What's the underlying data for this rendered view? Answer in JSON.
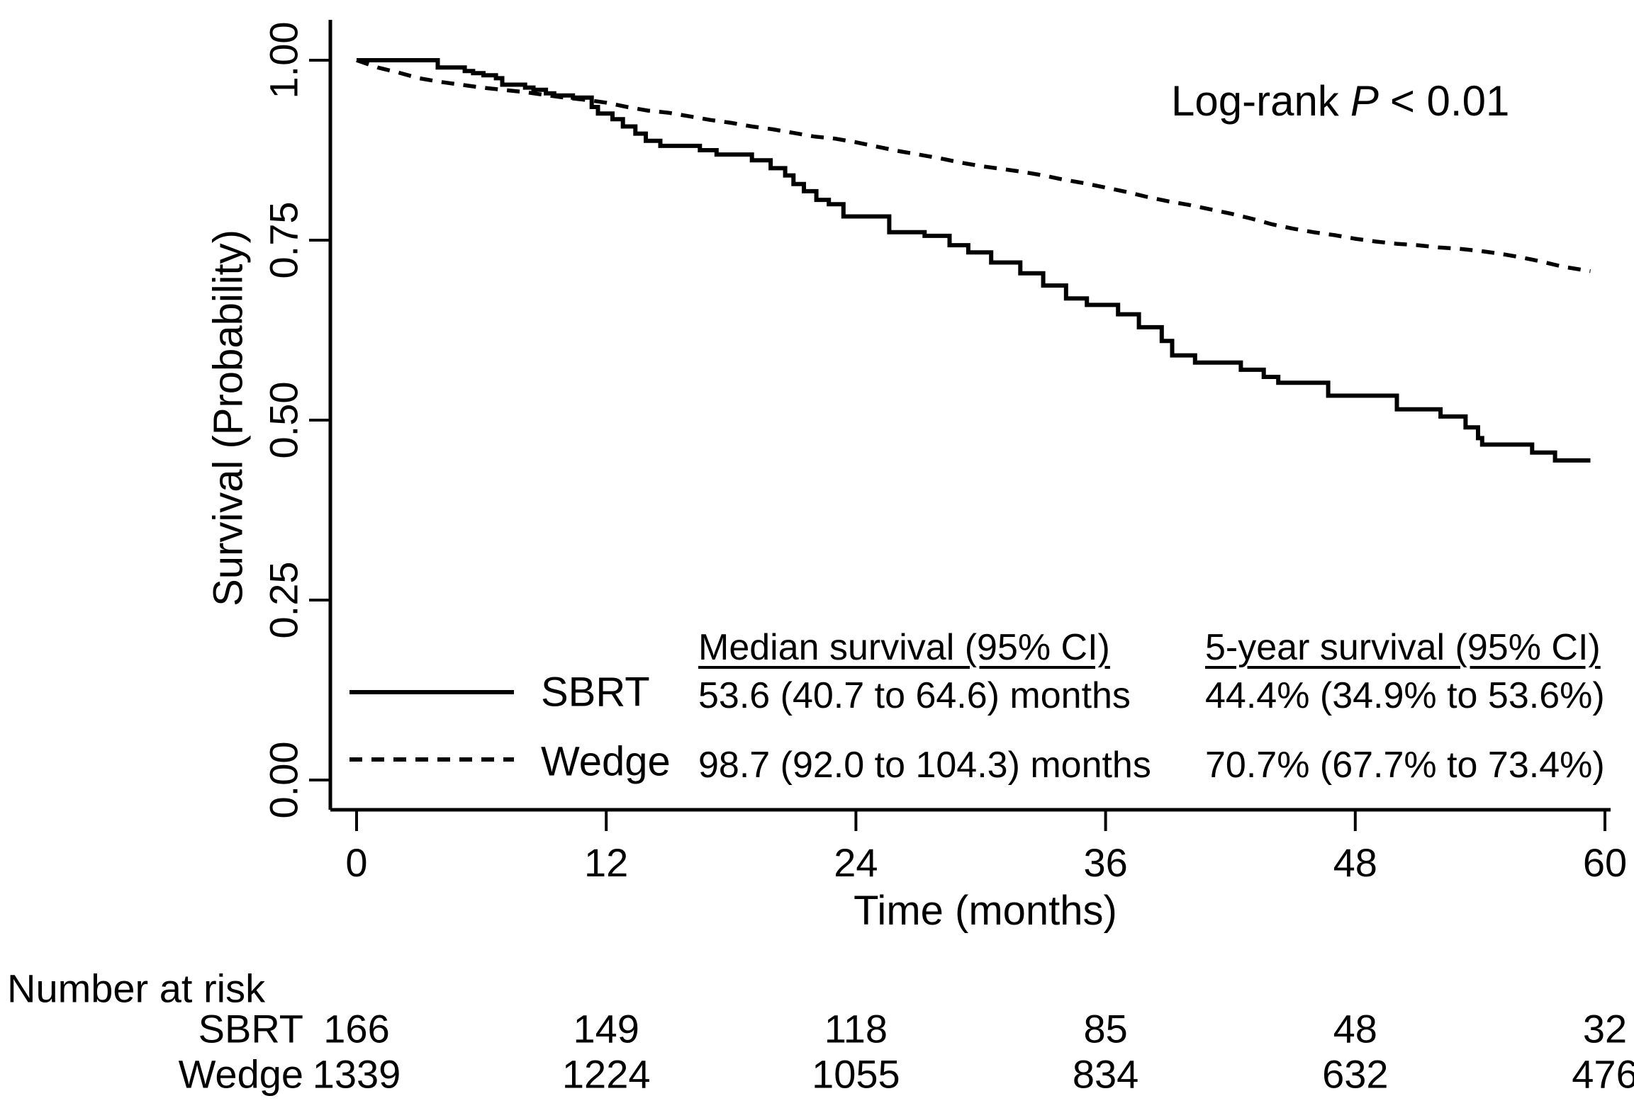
{
  "annotation": {
    "text_before_p": "Log-rank",
    "p_symbol": "P",
    "text_after_p": "< 0.01"
  },
  "axes": {
    "y": {
      "label": "Survival (Probability)",
      "ticks": [
        "1.00",
        "0.75",
        "0.50",
        "0.25",
        "0.00"
      ],
      "tick_values": [
        1.0,
        0.75,
        0.5,
        0.25,
        0.0
      ]
    },
    "x": {
      "label": "Time (months)",
      "ticks": [
        "0",
        "12",
        "24",
        "36",
        "48",
        "60"
      ],
      "tick_values": [
        0,
        12,
        24,
        36,
        48,
        60
      ]
    }
  },
  "legend": {
    "median_header": "Median survival (95% CI)",
    "five_year_header": "5-year survival (95% CI)",
    "rows": [
      {
        "name": "SBRT",
        "line_style": "solid",
        "median": "53.6 (40.7 to 64.6) months",
        "five_year": "44.4% (34.9% to 53.6%)"
      },
      {
        "name": "Wedge",
        "line_style": "dashed",
        "median": "98.7 (92.0 to 104.3) months",
        "five_year": "70.7% (67.7% to 73.4%)"
      }
    ]
  },
  "numbers_at_risk": {
    "title": "Number at risk",
    "rows": [
      {
        "name": "SBRT",
        "values": [
          "166",
          "149",
          "118",
          "85",
          "48",
          "32"
        ]
      },
      {
        "name": "Wedge",
        "values": [
          "1339",
          "1224",
          "1055",
          "834",
          "632",
          "476"
        ]
      }
    ]
  },
  "colors": {
    "foreground": "#000000",
    "background": "#ffffff"
  },
  "chart_data": {
    "type": "line",
    "subtype": "kaplan-meier-step",
    "title": "",
    "xlabel": "Time (months)",
    "ylabel": "Survival (Probability)",
    "xlim": [
      0,
      60
    ],
    "ylim": [
      0.0,
      1.0
    ],
    "x_ticks": [
      0,
      12,
      24,
      36,
      48,
      60
    ],
    "y_ticks": [
      0.0,
      0.25,
      0.5,
      0.75,
      1.0
    ],
    "grid": false,
    "legend_position": "lower-center-table",
    "annotation": "Log-rank P < 0.01",
    "series": [
      {
        "name": "SBRT",
        "style": "solid",
        "interpolation": "step-after",
        "points": [
          [
            0,
            1.0
          ],
          [
            3.8,
            1.0
          ],
          [
            3.9,
            0.99
          ],
          [
            5.2,
            0.985
          ],
          [
            5.6,
            0.982
          ],
          [
            6.1,
            0.979
          ],
          [
            6.7,
            0.975
          ],
          [
            7.0,
            0.966
          ],
          [
            8.1,
            0.962
          ],
          [
            8.5,
            0.959
          ],
          [
            9.1,
            0.954
          ],
          [
            9.5,
            0.951
          ],
          [
            10.4,
            0.948
          ],
          [
            11.3,
            0.935
          ],
          [
            11.6,
            0.926
          ],
          [
            12.3,
            0.918
          ],
          [
            12.8,
            0.908
          ],
          [
            13.4,
            0.898
          ],
          [
            13.9,
            0.888
          ],
          [
            14.6,
            0.881
          ],
          [
            16.5,
            0.875
          ],
          [
            17.3,
            0.869
          ],
          [
            19.0,
            0.861
          ],
          [
            19.9,
            0.85
          ],
          [
            20.6,
            0.84
          ],
          [
            21.0,
            0.828
          ],
          [
            21.5,
            0.818
          ],
          [
            22.1,
            0.806
          ],
          [
            22.7,
            0.8
          ],
          [
            23.4,
            0.783
          ],
          [
            25.6,
            0.761
          ],
          [
            27.3,
            0.756
          ],
          [
            28.5,
            0.743
          ],
          [
            29.4,
            0.733
          ],
          [
            30.5,
            0.719
          ],
          [
            31.9,
            0.704
          ],
          [
            33.0,
            0.687
          ],
          [
            34.1,
            0.669
          ],
          [
            35.1,
            0.66
          ],
          [
            36.6,
            0.647
          ],
          [
            37.6,
            0.629
          ],
          [
            38.7,
            0.61
          ],
          [
            39.2,
            0.59
          ],
          [
            40.3,
            0.58
          ],
          [
            42.5,
            0.57
          ],
          [
            43.6,
            0.56
          ],
          [
            44.3,
            0.552
          ],
          [
            46.7,
            0.534
          ],
          [
            50.0,
            0.515
          ],
          [
            52.1,
            0.505
          ],
          [
            53.3,
            0.49
          ],
          [
            53.9,
            0.475
          ],
          [
            54.1,
            0.466
          ],
          [
            56.5,
            0.455
          ],
          [
            57.6,
            0.444
          ],
          [
            59.3,
            0.444
          ]
        ]
      },
      {
        "name": "Wedge",
        "style": "dashed",
        "interpolation": "linear",
        "points": [
          [
            0,
            1.0
          ],
          [
            1,
            0.99
          ],
          [
            2,
            0.983
          ],
          [
            3,
            0.975
          ],
          [
            4,
            0.97
          ],
          [
            5,
            0.966
          ],
          [
            6,
            0.962
          ],
          [
            7,
            0.959
          ],
          [
            8,
            0.956
          ],
          [
            9,
            0.952
          ],
          [
            10,
            0.948
          ],
          [
            11,
            0.945
          ],
          [
            12,
            0.941
          ],
          [
            13,
            0.935
          ],
          [
            14,
            0.93
          ],
          [
            15,
            0.927
          ],
          [
            16,
            0.922
          ],
          [
            17,
            0.917
          ],
          [
            18,
            0.913
          ],
          [
            19,
            0.908
          ],
          [
            20,
            0.904
          ],
          [
            21,
            0.899
          ],
          [
            22,
            0.894
          ],
          [
            23,
            0.891
          ],
          [
            24,
            0.886
          ],
          [
            25,
            0.88
          ],
          [
            26,
            0.874
          ],
          [
            27,
            0.869
          ],
          [
            28,
            0.864
          ],
          [
            29,
            0.858
          ],
          [
            30,
            0.853
          ],
          [
            31,
            0.849
          ],
          [
            32,
            0.845
          ],
          [
            33,
            0.84
          ],
          [
            34,
            0.834
          ],
          [
            35,
            0.829
          ],
          [
            36,
            0.823
          ],
          [
            37,
            0.817
          ],
          [
            38,
            0.81
          ],
          [
            39,
            0.804
          ],
          [
            40,
            0.799
          ],
          [
            41,
            0.793
          ],
          [
            42,
            0.787
          ],
          [
            43,
            0.78
          ],
          [
            44,
            0.772
          ],
          [
            45,
            0.766
          ],
          [
            46,
            0.761
          ],
          [
            47,
            0.757
          ],
          [
            48,
            0.752
          ],
          [
            49,
            0.748
          ],
          [
            50,
            0.745
          ],
          [
            51,
            0.743
          ],
          [
            52,
            0.74
          ],
          [
            53,
            0.738
          ],
          [
            54,
            0.735
          ],
          [
            55,
            0.731
          ],
          [
            56,
            0.726
          ],
          [
            57,
            0.72
          ],
          [
            58,
            0.713
          ],
          [
            59.3,
            0.707
          ]
        ]
      }
    ]
  }
}
